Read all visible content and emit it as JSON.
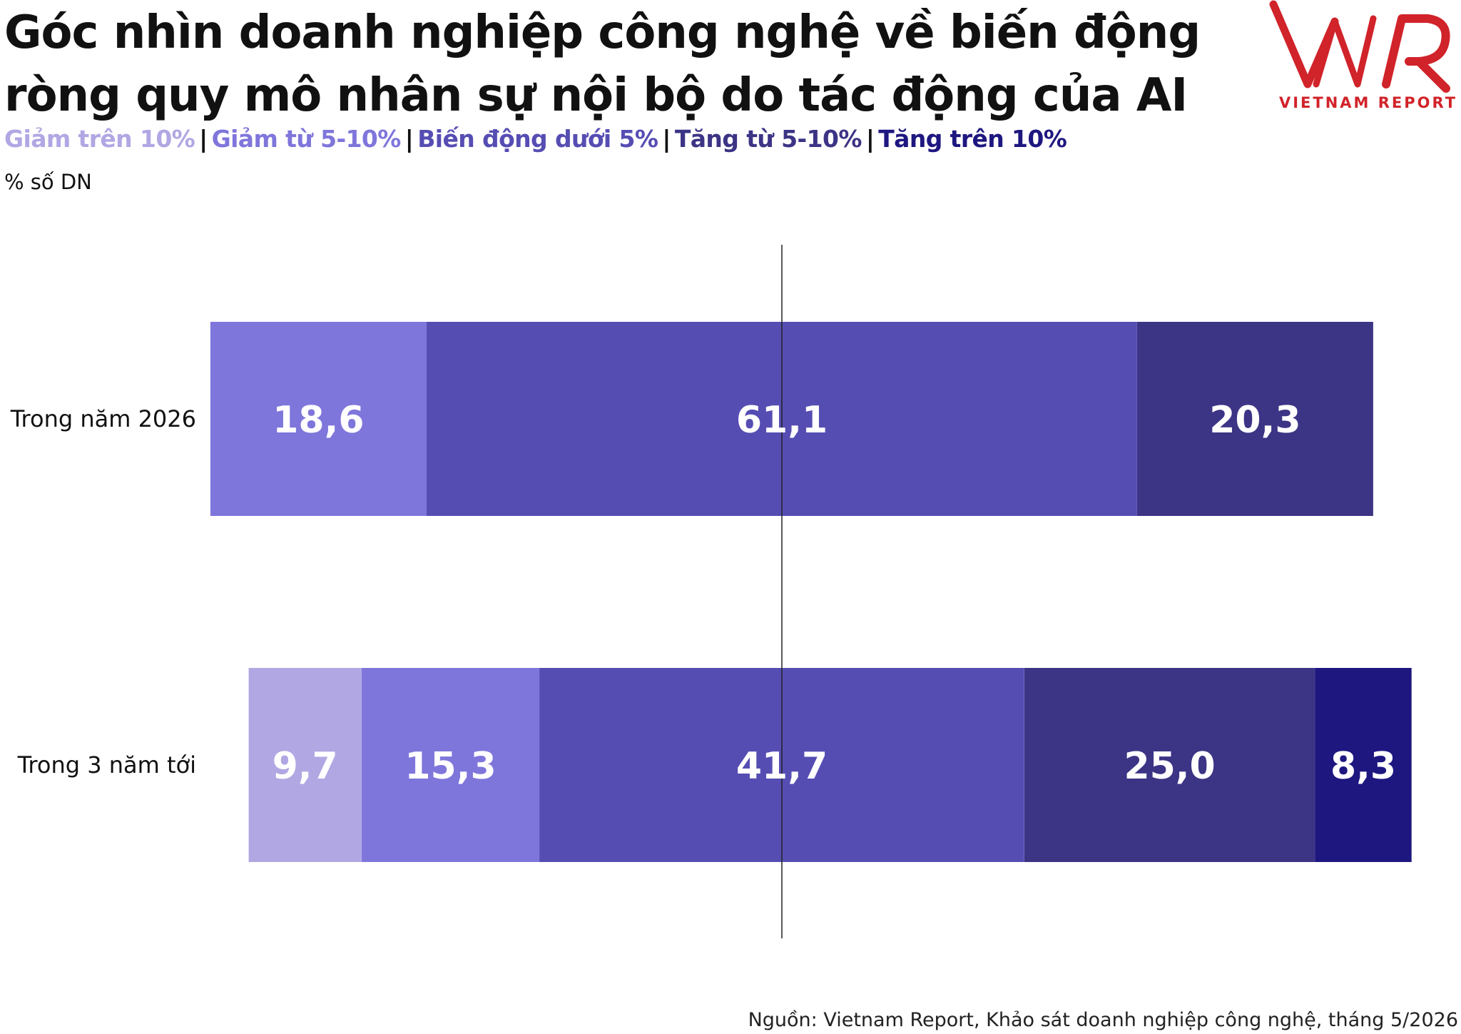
{
  "title": "Góc nhìn doanh nghiệp công nghệ về biến động ròng quy mô nhân sự nội bộ do tác động của AI",
  "logo": {
    "mark": "VNR",
    "text": "VIETNAM REPORT",
    "color": "#d1232a"
  },
  "source": "Nguồn: Vietnam Report, Khảo sát doanh nghiệp công nghệ, tháng 5/2026",
  "chart_data": {
    "type": "bar",
    "orientation": "horizontal",
    "stacked": true,
    "diverging": true,
    "title": "Góc nhìn doanh nghiệp công nghệ về biến động ròng quy mô nhân sự nội bộ do tác động của AI",
    "ylabel": "% số DN",
    "categories": [
      "Trong năm 2026",
      "Trong 3 năm tới"
    ],
    "legend_position": "top",
    "grid": false,
    "series": [
      {
        "name": "Giảm trên 10%",
        "color": "#b0a7e3",
        "values": [
          0,
          9.7
        ]
      },
      {
        "name": "Giảm từ 5-10%",
        "color": "#7f76db",
        "values": [
          18.6,
          15.3
        ]
      },
      {
        "name": "Biến động dưới 5%",
        "color": "#564db3",
        "values": [
          61.1,
          41.7
        ]
      },
      {
        "name": "Tăng từ 5-10%",
        "color": "#3c3485",
        "values": [
          20.3,
          25.0
        ]
      },
      {
        "name": "Tăng trên 10%",
        "color": "#1e1780",
        "values": [
          0,
          8.3
        ]
      }
    ],
    "value_labels": [
      [
        "",
        "18,6",
        "61,1",
        "20,3",
        ""
      ],
      [
        "9,7",
        "15,3",
        "41,7",
        "25,0",
        "8,3"
      ]
    ],
    "center_series": "Biến động dưới 5%"
  }
}
